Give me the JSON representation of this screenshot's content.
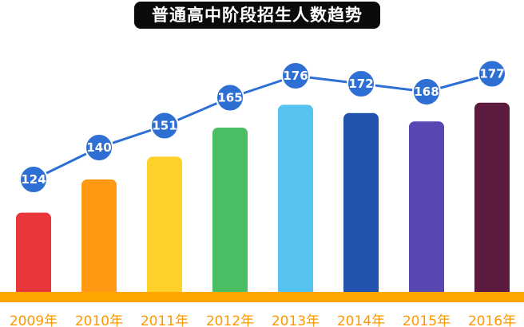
{
  "chart_data": {
    "type": "bar",
    "title": "普通高中阶段招生人数趋势",
    "categories": [
      "2009年",
      "2010年",
      "2011年",
      "2012年",
      "2013年",
      "2014年",
      "2015年",
      "2016年"
    ],
    "series": [
      {
        "values": [
          124,
          140,
          151,
          165,
          176,
          172,
          168,
          177
        ]
      }
    ],
    "bar_colors": [
      "#e8363b",
      "#ff9812",
      "#ffd02a",
      "#4bbe63",
      "#56c2f0",
      "#2252ae",
      "#5747b2",
      "#5c1b3e"
    ],
    "line_color": "#2e6fd4",
    "marker_color": "#2e6fd4",
    "baseline_color": "#ffa500",
    "tick_label_color": "#ff9800",
    "overlay": "line-with-markers",
    "data_labels": true,
    "grid": false,
    "legend": "none"
  }
}
